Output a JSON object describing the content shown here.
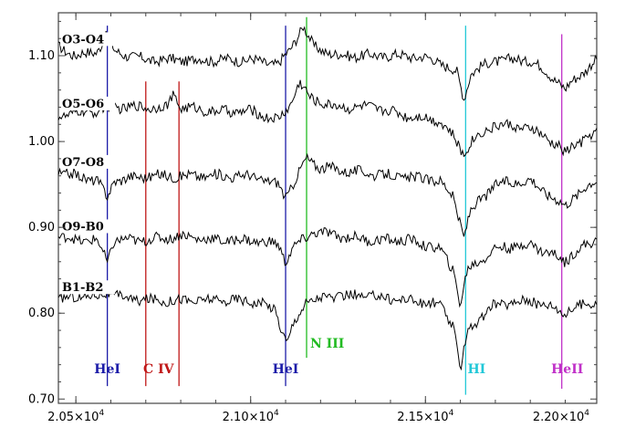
{
  "chart_data": {
    "type": "line",
    "title": "",
    "xlabel": "",
    "ylabel": "",
    "xlim": [
      20450,
      21990
    ],
    "ylim": [
      0.695,
      1.15
    ],
    "x_ticks": [
      20500,
      21000,
      21500,
      21990
    ],
    "x_tick_labels": [
      {
        "mantissa": "2.05×10",
        "exp": "4"
      },
      {
        "mantissa": "2.10×10",
        "exp": "4"
      },
      {
        "mantissa": "2.15×10",
        "exp": "4"
      },
      {
        "mantissa": "2.20×10",
        "exp": "4"
      }
    ],
    "y_ticks": [
      0.7,
      0.8,
      0.9,
      1.0,
      1.1
    ],
    "y_tick_labels": [
      "0.70",
      "0.80",
      "0.90",
      "1.00",
      "1.10"
    ],
    "series": [
      {
        "name": "O3-O4",
        "baseline": 1.095,
        "points": [
          [
            20450,
            1.11
          ],
          [
            20500,
            1.1
          ],
          [
            20560,
            1.105
          ],
          [
            20590,
            1.125
          ],
          [
            20610,
            1.105
          ],
          [
            20700,
            1.095
          ],
          [
            20800,
            1.095
          ],
          [
            20900,
            1.095
          ],
          [
            21000,
            1.095
          ],
          [
            21080,
            1.09
          ],
          [
            21110,
            1.105
          ],
          [
            21150,
            1.135
          ],
          [
            21180,
            1.11
          ],
          [
            21250,
            1.1
          ],
          [
            21350,
            1.1
          ],
          [
            21450,
            1.1
          ],
          [
            21530,
            1.095
          ],
          [
            21590,
            1.08
          ],
          [
            21610,
            1.05
          ],
          [
            21630,
            1.08
          ],
          [
            21700,
            1.095
          ],
          [
            21800,
            1.095
          ],
          [
            21880,
            1.07
          ],
          [
            21900,
            1.06
          ],
          [
            21920,
            1.07
          ],
          [
            21990,
            1.095
          ]
        ]
      },
      {
        "name": "O5-O6",
        "baseline": 1.03,
        "points": [
          [
            20450,
            1.03
          ],
          [
            20550,
            1.035
          ],
          [
            20600,
            1.04
          ],
          [
            20700,
            1.04
          ],
          [
            20760,
            1.04
          ],
          [
            20780,
            1.055
          ],
          [
            20800,
            1.04
          ],
          [
            20900,
            1.035
          ],
          [
            21000,
            1.035
          ],
          [
            21080,
            1.025
          ],
          [
            21110,
            1.04
          ],
          [
            21140,
            1.07
          ],
          [
            21170,
            1.05
          ],
          [
            21250,
            1.04
          ],
          [
            21350,
            1.04
          ],
          [
            21450,
            1.03
          ],
          [
            21540,
            1.025
          ],
          [
            21580,
            1.005
          ],
          [
            21610,
            0.985
          ],
          [
            21630,
            1.0
          ],
          [
            21700,
            1.02
          ],
          [
            21800,
            1.015
          ],
          [
            21880,
            0.995
          ],
          [
            21900,
            0.985
          ],
          [
            21920,
            0.995
          ],
          [
            21990,
            1.01
          ]
        ]
      },
      {
        "name": "O7-O8",
        "baseline": 0.96,
        "points": [
          [
            20450,
            0.965
          ],
          [
            20500,
            0.96
          ],
          [
            20560,
            0.955
          ],
          [
            20590,
            0.935
          ],
          [
            20610,
            0.955
          ],
          [
            20700,
            0.96
          ],
          [
            20800,
            0.96
          ],
          [
            20900,
            0.96
          ],
          [
            21000,
            0.96
          ],
          [
            21080,
            0.95
          ],
          [
            21100,
            0.935
          ],
          [
            21120,
            0.95
          ],
          [
            21160,
            0.98
          ],
          [
            21200,
            0.97
          ],
          [
            21300,
            0.965
          ],
          [
            21400,
            0.96
          ],
          [
            21540,
            0.955
          ],
          [
            21580,
            0.935
          ],
          [
            21610,
            0.89
          ],
          [
            21630,
            0.92
          ],
          [
            21700,
            0.95
          ],
          [
            21800,
            0.955
          ],
          [
            21880,
            0.93
          ],
          [
            21900,
            0.925
          ],
          [
            21920,
            0.935
          ],
          [
            21990,
            0.955
          ]
        ]
      },
      {
        "name": "O9-B0",
        "baseline": 0.885,
        "points": [
          [
            20450,
            0.89
          ],
          [
            20500,
            0.885
          ],
          [
            20560,
            0.885
          ],
          [
            20590,
            0.86
          ],
          [
            20610,
            0.885
          ],
          [
            20700,
            0.885
          ],
          [
            20800,
            0.89
          ],
          [
            20900,
            0.885
          ],
          [
            21000,
            0.885
          ],
          [
            21080,
            0.88
          ],
          [
            21100,
            0.86
          ],
          [
            21120,
            0.875
          ],
          [
            21180,
            0.895
          ],
          [
            21250,
            0.89
          ],
          [
            21350,
            0.885
          ],
          [
            21450,
            0.885
          ],
          [
            21540,
            0.875
          ],
          [
            21580,
            0.85
          ],
          [
            21600,
            0.81
          ],
          [
            21620,
            0.85
          ],
          [
            21700,
            0.875
          ],
          [
            21800,
            0.88
          ],
          [
            21880,
            0.865
          ],
          [
            21900,
            0.86
          ],
          [
            21920,
            0.87
          ],
          [
            21990,
            0.885
          ]
        ]
      },
      {
        "name": "B1-B2",
        "baseline": 0.82,
        "points": [
          [
            20450,
            0.815
          ],
          [
            20500,
            0.82
          ],
          [
            20560,
            0.82
          ],
          [
            20590,
            0.825
          ],
          [
            20610,
            0.82
          ],
          [
            20700,
            0.815
          ],
          [
            20800,
            0.815
          ],
          [
            20900,
            0.815
          ],
          [
            21000,
            0.815
          ],
          [
            21070,
            0.805
          ],
          [
            21090,
            0.78
          ],
          [
            21105,
            0.765
          ],
          [
            21120,
            0.785
          ],
          [
            21160,
            0.815
          ],
          [
            21250,
            0.82
          ],
          [
            21350,
            0.82
          ],
          [
            21450,
            0.815
          ],
          [
            21540,
            0.81
          ],
          [
            21580,
            0.785
          ],
          [
            21600,
            0.735
          ],
          [
            21620,
            0.78
          ],
          [
            21700,
            0.81
          ],
          [
            21800,
            0.815
          ],
          [
            21880,
            0.805
          ],
          [
            21900,
            0.8
          ],
          [
            21920,
            0.805
          ],
          [
            21990,
            0.815
          ]
        ]
      }
    ],
    "spectral_lines": [
      {
        "label": "HeI",
        "x": 20590,
        "color": "#1c1ca8"
      },
      {
        "label": "C IV",
        "x": 20700,
        "color": "#c01818"
      },
      {
        "label": "",
        "x": 20795,
        "color": "#c01818"
      },
      {
        "label": "HeI",
        "x": 21100,
        "color": "#1c1ca8"
      },
      {
        "label": "N III",
        "x": 21160,
        "color": "#22bb22"
      },
      {
        "label": "HI",
        "x": 21615,
        "color": "#22c8d8"
      },
      {
        "label": "HeII",
        "x": 21890,
        "color": "#c030c8"
      }
    ],
    "grid": false,
    "legend": "none"
  }
}
